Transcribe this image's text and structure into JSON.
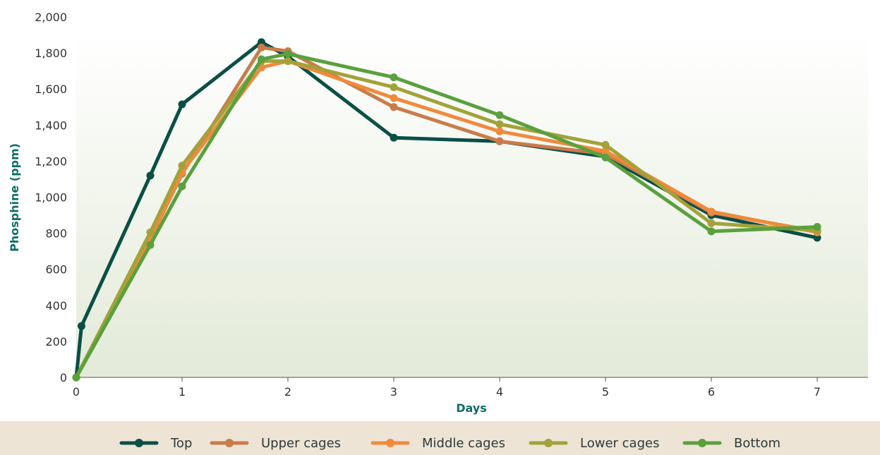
{
  "chart_data": {
    "type": "line",
    "title": "",
    "xlabel": "Days",
    "ylabel": "Phosphine (ppm)",
    "xlim": [
      0,
      7.5
    ],
    "ylim": [
      0,
      2000
    ],
    "xticks": [
      0,
      1,
      2,
      3,
      4,
      5,
      6,
      7
    ],
    "yticks": [
      0,
      200,
      400,
      600,
      800,
      1000,
      1200,
      1400,
      1600,
      1800,
      2000
    ],
    "ytick_labels": [
      "0",
      "200",
      "400",
      "600",
      "800",
      "1,000",
      "1,200",
      "1,400",
      "1,600",
      "1,800",
      "2,000"
    ],
    "grid": false,
    "legend_position": "bottom",
    "series": [
      {
        "name": "Top",
        "color": "#0a4f45",
        "points": [
          [
            0,
            0
          ],
          [
            0.05,
            285
          ],
          [
            0.7,
            1120
          ],
          [
            1,
            1515
          ],
          [
            1.75,
            1860
          ],
          [
            2,
            1780
          ],
          [
            3,
            1330
          ],
          [
            4,
            1310
          ],
          [
            5,
            1225
          ],
          [
            6,
            900
          ],
          [
            7,
            775
          ]
        ]
      },
      {
        "name": "Upper cages",
        "color": "#c97c4a",
        "points": [
          [
            0,
            0
          ],
          [
            0.7,
            770
          ],
          [
            1,
            1130
          ],
          [
            1.75,
            1830
          ],
          [
            2,
            1810
          ],
          [
            3,
            1500
          ],
          [
            4,
            1310
          ],
          [
            5,
            1240
          ],
          [
            6,
            915
          ],
          [
            7,
            810
          ]
        ]
      },
      {
        "name": "Middle cages",
        "color": "#f08a3c",
        "points": [
          [
            0,
            0
          ],
          [
            0.7,
            760
          ],
          [
            1,
            1140
          ],
          [
            1.75,
            1720
          ],
          [
            2,
            1755
          ],
          [
            3,
            1550
          ],
          [
            4,
            1365
          ],
          [
            5,
            1255
          ],
          [
            6,
            920
          ],
          [
            7,
            805
          ]
        ]
      },
      {
        "name": "Lower cages",
        "color": "#a3a23a",
        "points": [
          [
            0,
            0
          ],
          [
            0.7,
            805
          ],
          [
            1,
            1175
          ],
          [
            1.75,
            1755
          ],
          [
            2,
            1755
          ],
          [
            3,
            1610
          ],
          [
            4,
            1405
          ],
          [
            5,
            1290
          ],
          [
            6,
            855
          ],
          [
            7,
            815
          ]
        ]
      },
      {
        "name": "Bottom",
        "color": "#5aa03e",
        "points": [
          [
            0,
            0
          ],
          [
            0.7,
            735
          ],
          [
            1,
            1060
          ],
          [
            1.75,
            1765
          ],
          [
            2,
            1795
          ],
          [
            3,
            1665
          ],
          [
            4,
            1455
          ],
          [
            5,
            1220
          ],
          [
            6,
            810
          ],
          [
            7,
            835
          ]
        ]
      }
    ]
  }
}
